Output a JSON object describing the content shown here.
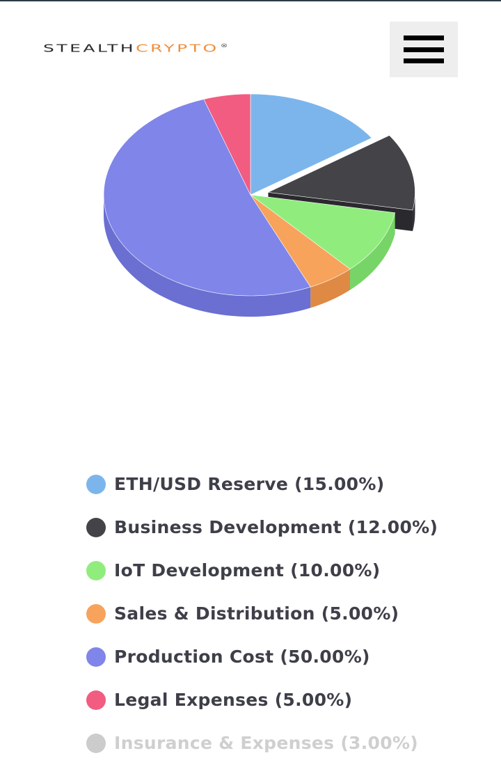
{
  "header": {
    "logo_part1": "STEALTH",
    "logo_part2": "CRYPTO",
    "logo_mark": "®",
    "menu_icon": "hamburger-menu-icon"
  },
  "chart_data": {
    "type": "pie",
    "style": "3d",
    "title": "",
    "exploded_slice": "Business Development",
    "legend_position": "bottom",
    "slices": [
      {
        "label": "ETH/USD Reserve (15.00%)",
        "value": 15,
        "color": "#7cb5ec",
        "side_color": "#6a9fd4",
        "visible": true
      },
      {
        "label": "Business Development (12.00%)",
        "value": 12,
        "color": "#434348",
        "side_color": "#2e2e32",
        "visible": true
      },
      {
        "label": "IoT Development (10.00%)",
        "value": 10,
        "color": "#90ed7d",
        "side_color": "#77d466",
        "visible": true
      },
      {
        "label": "Sales & Distribution (5.00%)",
        "value": 5,
        "color": "#f7a35c",
        "side_color": "#de8a44",
        "visible": true
      },
      {
        "label": "Production Cost (50.00%)",
        "value": 50,
        "color": "#8085e9",
        "side_color": "#6a6fd1",
        "visible": true
      },
      {
        "label": "Legal Expenses (5.00%)",
        "value": 5,
        "color": "#f15c80",
        "side_color": "#d84468",
        "visible": true
      },
      {
        "label": "Insurance & Expenses (3.00%)",
        "value": 3,
        "color": "#cccccc",
        "side_color": "#b3b3b3",
        "visible": false
      }
    ]
  }
}
